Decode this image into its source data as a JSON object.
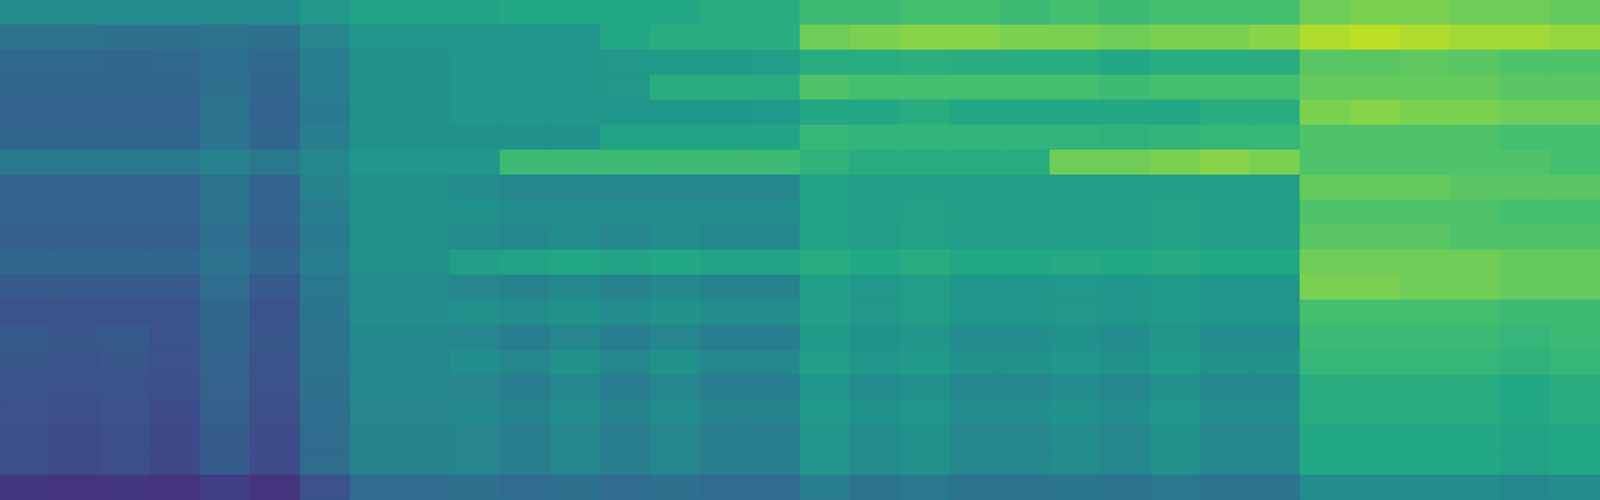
{
  "chart_data": {
    "type": "heatmap",
    "xlim": [
      0,
      32
    ],
    "ylim": [
      0,
      20
    ],
    "zlim": [
      0,
      100
    ],
    "tick_labels": false,
    "grid": false,
    "cells": [
      [
        48,
        48,
        48,
        48,
        48,
        48,
        53,
        58,
        58,
        58,
        60,
        60,
        60,
        60,
        62,
        62,
        68,
        68,
        70,
        70,
        68,
        70,
        68,
        70,
        70,
        70,
        78,
        80,
        80,
        78,
        78,
        76
      ],
      [
        38,
        38,
        37,
        37,
        38,
        37,
        45,
        52,
        52,
        52,
        52,
        52,
        60,
        62,
        62,
        62,
        78,
        80,
        82,
        82,
        80,
        80,
        78,
        80,
        80,
        82,
        88,
        90,
        88,
        86,
        86,
        84
      ],
      [
        34,
        34,
        33,
        34,
        36,
        34,
        42,
        50,
        50,
        52,
        52,
        52,
        53,
        54,
        54,
        55,
        62,
        62,
        63,
        62,
        62,
        62,
        60,
        62,
        62,
        62,
        74,
        74,
        75,
        74,
        72,
        72
      ],
      [
        33,
        33,
        33,
        33,
        37,
        33,
        42,
        50,
        50,
        52,
        52,
        52,
        53,
        62,
        62,
        62,
        72,
        70,
        70,
        70,
        70,
        70,
        68,
        70,
        70,
        70,
        76,
        76,
        76,
        76,
        74,
        74
      ],
      [
        32,
        32,
        32,
        32,
        38,
        32,
        41,
        50,
        50,
        52,
        52,
        52,
        52,
        52,
        52,
        53,
        60,
        60,
        62,
        60,
        60,
        60,
        60,
        60,
        62,
        62,
        80,
        82,
        80,
        80,
        78,
        78
      ],
      [
        33,
        33,
        33,
        33,
        38,
        33,
        42,
        50,
        50,
        50,
        50,
        50,
        58,
        58,
        58,
        58,
        66,
        65,
        65,
        65,
        65,
        65,
        64,
        65,
        66,
        66,
        72,
        72,
        72,
        72,
        70,
        70
      ],
      [
        40,
        40,
        40,
        40,
        44,
        40,
        46,
        52,
        52,
        52,
        68,
        68,
        68,
        68,
        68,
        68,
        64,
        62,
        62,
        62,
        62,
        78,
        78,
        80,
        82,
        80,
        72,
        72,
        72,
        72,
        72,
        70
      ],
      [
        32,
        32,
        32,
        32,
        38,
        32,
        44,
        50,
        50,
        48,
        46,
        46,
        46,
        46,
        46,
        46,
        58,
        55,
        56,
        55,
        55,
        55,
        55,
        56,
        55,
        55,
        76,
        76,
        76,
        74,
        74,
        74
      ],
      [
        32,
        32,
        32,
        32,
        38,
        32,
        42,
        50,
        50,
        50,
        48,
        48,
        48,
        48,
        48,
        48,
        58,
        56,
        57,
        56,
        56,
        56,
        56,
        57,
        56,
        56,
        72,
        72,
        72,
        72,
        70,
        70
      ],
      [
        30,
        30,
        30,
        30,
        36,
        30,
        41,
        50,
        50,
        48,
        46,
        48,
        46,
        48,
        46,
        46,
        58,
        55,
        57,
        55,
        55,
        56,
        55,
        57,
        55,
        55,
        74,
        74,
        74,
        72,
        72,
        72
      ],
      [
        33,
        33,
        33,
        33,
        38,
        33,
        42,
        50,
        50,
        56,
        58,
        60,
        58,
        60,
        58,
        58,
        62,
        60,
        62,
        60,
        60,
        61,
        60,
        61,
        60,
        60,
        78,
        78,
        78,
        78,
        76,
        76
      ],
      [
        28,
        28,
        28,
        28,
        35,
        28,
        40,
        48,
        48,
        46,
        44,
        47,
        44,
        47,
        44,
        44,
        56,
        53,
        55,
        52,
        52,
        53,
        52,
        54,
        52,
        52,
        80,
        80,
        78,
        78,
        76,
        76
      ],
      [
        26,
        26,
        26,
        26,
        33,
        26,
        39,
        48,
        48,
        50,
        48,
        51,
        48,
        51,
        48,
        48,
        56,
        53,
        55,
        52,
        52,
        53,
        52,
        54,
        52,
        52,
        70,
        70,
        70,
        70,
        68,
        68
      ],
      [
        28,
        27,
        28,
        26,
        33,
        27,
        38,
        47,
        47,
        45,
        42,
        46,
        42,
        46,
        42,
        42,
        54,
        50,
        52,
        48,
        48,
        50,
        48,
        52,
        48,
        48,
        68,
        68,
        68,
        68,
        66,
        68
      ],
      [
        27,
        26,
        27,
        25,
        32,
        26,
        38,
        46,
        46,
        49,
        46,
        50,
        46,
        50,
        46,
        46,
        56,
        52,
        54,
        50,
        50,
        52,
        50,
        54,
        50,
        50,
        66,
        66,
        66,
        66,
        64,
        66
      ],
      [
        26,
        25,
        26,
        24,
        31,
        25,
        37,
        46,
        46,
        45,
        42,
        46,
        42,
        46,
        42,
        42,
        52,
        48,
        50,
        46,
        46,
        48,
        46,
        50,
        46,
        46,
        62,
        62,
        62,
        62,
        60,
        62
      ],
      [
        25,
        24,
        25,
        23,
        30,
        24,
        36,
        45,
        45,
        47,
        44,
        48,
        44,
        48,
        44,
        44,
        54,
        50,
        52,
        48,
        48,
        50,
        48,
        52,
        48,
        48,
        62,
        62,
        62,
        62,
        60,
        62
      ],
      [
        24,
        23,
        24,
        22,
        29,
        23,
        35,
        44,
        44,
        45,
        42,
        46,
        42,
        46,
        42,
        42,
        52,
        48,
        50,
        46,
        46,
        48,
        46,
        50,
        46,
        46,
        60,
        60,
        60,
        60,
        58,
        60
      ],
      [
        24,
        23,
        24,
        22,
        29,
        23,
        35,
        44,
        44,
        45,
        42,
        46,
        42,
        46,
        42,
        42,
        52,
        48,
        50,
        46,
        46,
        48,
        46,
        50,
        46,
        46,
        60,
        60,
        60,
        60,
        58,
        60
      ],
      [
        16,
        15,
        16,
        15,
        18,
        15,
        25,
        35,
        35,
        37,
        35,
        37,
        35,
        37,
        35,
        35,
        42,
        38,
        40,
        38,
        38,
        39,
        38,
        40,
        38,
        38,
        48,
        48,
        48,
        48,
        46,
        48
      ]
    ]
  }
}
